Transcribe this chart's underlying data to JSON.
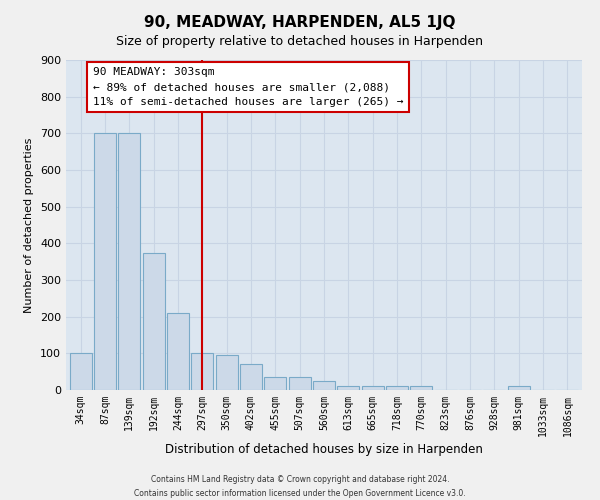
{
  "title": "90, MEADWAY, HARPENDEN, AL5 1JQ",
  "subtitle": "Size of property relative to detached houses in Harpenden",
  "xlabel": "Distribution of detached houses by size in Harpenden",
  "ylabel": "Number of detached properties",
  "bar_labels": [
    "34sqm",
    "87sqm",
    "139sqm",
    "192sqm",
    "244sqm",
    "297sqm",
    "350sqm",
    "402sqm",
    "455sqm",
    "507sqm",
    "560sqm",
    "613sqm",
    "665sqm",
    "718sqm",
    "770sqm",
    "823sqm",
    "876sqm",
    "928sqm",
    "981sqm",
    "1033sqm",
    "1086sqm"
  ],
  "bar_values": [
    100,
    700,
    700,
    375,
    210,
    100,
    95,
    72,
    35,
    35,
    25,
    10,
    10,
    10,
    10,
    0,
    0,
    0,
    10,
    0,
    0
  ],
  "bar_color": "#ccd9e8",
  "bar_edge_color": "#7aaac8",
  "vline_x": 5.0,
  "vline_color": "#cc0000",
  "annotation_title": "90 MEADWAY: 303sqm",
  "annotation_line1": "← 89% of detached houses are smaller (2,088)",
  "annotation_line2": "11% of semi-detached houses are larger (265) →",
  "annotation_box_facecolor": "#ffffff",
  "annotation_box_edgecolor": "#cc0000",
  "ylim": [
    0,
    900
  ],
  "yticks": [
    0,
    100,
    200,
    300,
    400,
    500,
    600,
    700,
    800,
    900
  ],
  "grid_color": "#c8d4e4",
  "plot_bg_color": "#dce6f0",
  "fig_bg_color": "#f0f0f0",
  "footer_line1": "Contains HM Land Registry data © Crown copyright and database right 2024.",
  "footer_line2": "Contains public sector information licensed under the Open Government Licence v3.0."
}
